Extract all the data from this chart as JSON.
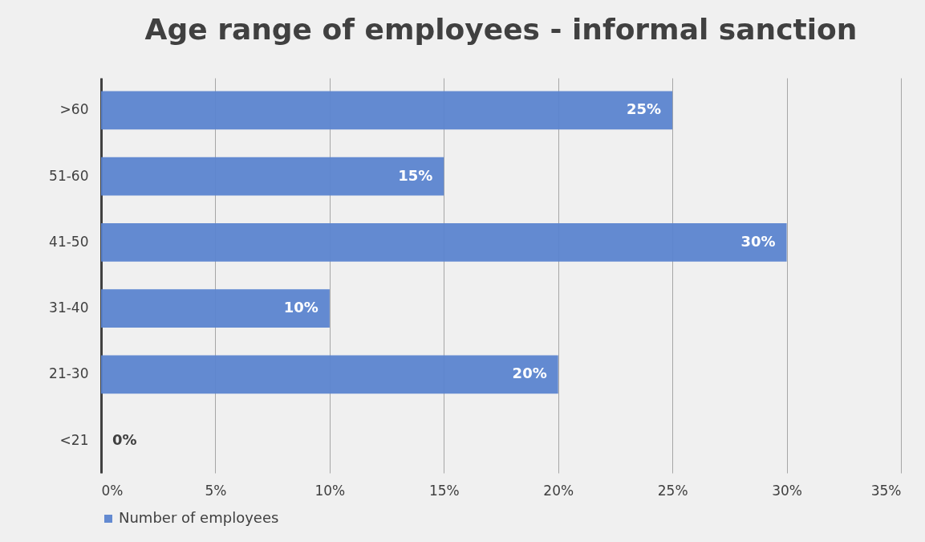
{
  "chart_data": {
    "type": "bar",
    "orientation": "horizontal",
    "title": "Age range of employees - informal sanction",
    "categories": [
      ">60",
      "51-60",
      "41-50",
      "31-40",
      "21-30",
      "<21"
    ],
    "series": [
      {
        "name": "Number of employees",
        "color": "#5b84cf",
        "values": [
          25,
          15,
          30,
          10,
          20,
          0
        ]
      }
    ],
    "value_labels": [
      "25%",
      "15%",
      "30%",
      "10%",
      "20%",
      "0%"
    ],
    "xlim": [
      0,
      35
    ],
    "xticks": [
      {
        "value": 0,
        "label": "0%"
      },
      {
        "value": 5,
        "label": "5%"
      },
      {
        "value": 10,
        "label": "10%"
      },
      {
        "value": 15,
        "label": "15%"
      },
      {
        "value": 20,
        "label": "20%"
      },
      {
        "value": 25,
        "label": "25%"
      },
      {
        "value": 30,
        "label": "30%"
      },
      {
        "value": 35,
        "label": "35%"
      }
    ],
    "grid": "x",
    "legend": "bottom"
  }
}
